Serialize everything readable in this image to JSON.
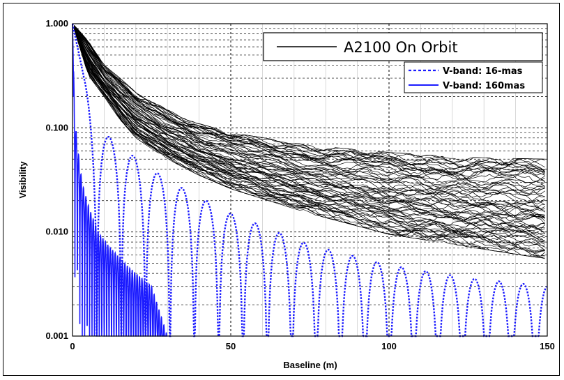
{
  "chart_data": {
    "type": "line",
    "xlabel": "Baseline (m)",
    "ylabel": "Visibility",
    "xlim": [
      0,
      150
    ],
    "ylim": [
      0.001,
      1.0
    ],
    "y_scale": "log",
    "x_ticks": [
      0,
      50,
      100,
      150
    ],
    "x_tick_labels": [
      "0",
      "50",
      "100",
      "150"
    ],
    "y_ticks": [
      1.0,
      0.1,
      0.01,
      0.001
    ],
    "y_tick_labels": [
      "1.000",
      "0.100",
      "0.010",
      "0.001"
    ],
    "grid": true,
    "legend_position": "top-right",
    "legend": [
      {
        "label": "A2100 On Orbit",
        "color": "#000000",
        "style": "solid"
      },
      {
        "label": "V-band: 16-mas",
        "color": "#1a1aff",
        "style": "dotted"
      },
      {
        "label": "V-band: 160mas",
        "color": "#1a1aff",
        "style": "solid"
      }
    ],
    "series": [
      {
        "name": "A2100 On Orbit",
        "kind": "envelope",
        "color": "#000000",
        "x": [
          0,
          5,
          10,
          15,
          20,
          30,
          40,
          50,
          75,
          100,
          125,
          150
        ],
        "upper": [
          1.0,
          0.7,
          0.4,
          0.3,
          0.22,
          0.15,
          0.11,
          0.09,
          0.068,
          0.058,
          0.052,
          0.05
        ],
        "lower": [
          1.0,
          0.32,
          0.2,
          0.12,
          0.08,
          0.05,
          0.035,
          0.026,
          0.015,
          0.0095,
          0.0072,
          0.0055
        ]
      },
      {
        "name": "V-band: 16-mas",
        "color": "#1a1aff",
        "style": "dotted",
        "x": [
          0,
          7,
          15,
          22,
          35,
          50,
          75,
          100,
          125,
          150
        ],
        "y": [
          1.0,
          0.1,
          0.07,
          0.045,
          0.026,
          0.015,
          0.0075,
          0.0048,
          0.0036,
          0.003
        ]
      },
      {
        "name": "V-band: 160mas",
        "color": "#1a1aff",
        "style": "solid",
        "x": [
          0,
          0.7,
          1.5,
          3,
          5,
          8,
          12,
          18,
          25,
          30
        ],
        "y": [
          1.0,
          0.13,
          0.07,
          0.03,
          0.018,
          0.01,
          0.007,
          0.0045,
          0.003,
          0.001
        ]
      }
    ]
  }
}
